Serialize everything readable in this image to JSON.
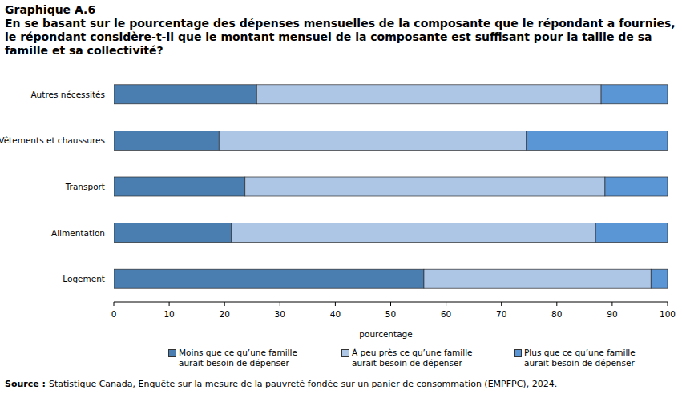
{
  "chart_data": {
    "type": "bar",
    "orientation": "horizontal",
    "stacked": true,
    "title": "Graphique A.6",
    "subtitle": "En se basant sur le pourcentage des dépenses mensuelles de la composante que le répondant a fournies, le répondant considère-t-il que le montant mensuel de la composante est suffisant pour la taille de sa famille et sa collectivité?",
    "x_label": "pourcentage",
    "categories": [
      "Autres nécessités",
      "Vêtements et chaussures",
      "Transport",
      "Alimentation",
      "Logement"
    ],
    "series": [
      {
        "name": "Moins que ce qu’une famille aurait besoin de dépenser",
        "color": "#4a7eb1",
        "values": [
          25.8,
          19.0,
          23.7,
          21.2,
          56.0
        ]
      },
      {
        "name": "À peu près ce qu’une famille aurait besoin de dépenser",
        "color": "#adc6e6",
        "values": [
          62.2,
          55.5,
          65.0,
          65.8,
          41.0
        ]
      },
      {
        "name": "Plus que ce qu’une famille aurait besoin de dépenser",
        "color": "#5a96d6",
        "values": [
          12.0,
          25.5,
          11.3,
          13.0,
          3.0
        ]
      }
    ],
    "xlim": [
      0,
      100
    ],
    "xticks": [
      0,
      10,
      20,
      30,
      40,
      50,
      60,
      70,
      80,
      90,
      100
    ],
    "grid": false,
    "legend": "bottom",
    "annotations": [
      "Source :",
      "Statistique Canada, Enquête sur la mesure de la pauvreté fondée sur un panier de consommation (EMPFPC), 2024."
    ]
  }
}
